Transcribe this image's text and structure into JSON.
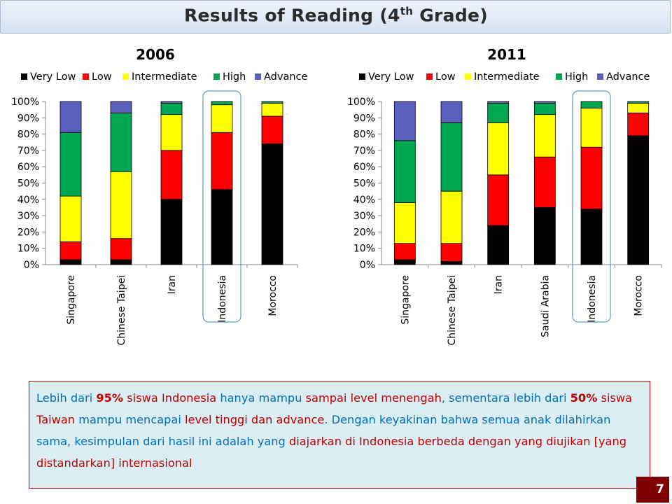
{
  "slide": {
    "title_main": "Results of Reading (4",
    "title_sup": "th",
    "title_end": " Grade)",
    "page_number": "7"
  },
  "chart_data": [
    {
      "type": "bar",
      "stacked": true,
      "title": "2006",
      "categories": [
        "Singapore",
        "Chinese Taipei",
        "Iran",
        "Indonesia",
        "Morocco"
      ],
      "series": [
        {
          "name": "Very Low",
          "color": "#000000",
          "values": [
            3,
            3,
            40,
            46,
            74
          ]
        },
        {
          "name": "Low",
          "color": "#ff0000",
          "values": [
            11,
            13,
            30,
            35,
            17
          ]
        },
        {
          "name": "Intermediate",
          "color": "#ffff00",
          "values": [
            28,
            41,
            22,
            17,
            8
          ]
        },
        {
          "name": "High",
          "color": "#00a650",
          "values": [
            39,
            36,
            7,
            2,
            1
          ]
        },
        {
          "name": "Advance",
          "color": "#5b5fbd",
          "values": [
            19,
            7,
            1,
            0,
            0
          ]
        }
      ],
      "yticks": [
        "0%",
        "10%",
        "20%",
        "30%",
        "40%",
        "50%",
        "60%",
        "70%",
        "80%",
        "90%",
        "100%"
      ],
      "ylim": [
        0,
        100
      ],
      "legend": "top",
      "highlight": "Indonesia"
    },
    {
      "type": "bar",
      "stacked": true,
      "title": "2011",
      "categories": [
        "Singapore",
        "Chinese Taipei",
        "Iran",
        "Saudi Arabia",
        "Indonesia",
        "Morocco"
      ],
      "series": [
        {
          "name": "Very Low",
          "color": "#000000",
          "values": [
            3,
            2,
            24,
            35,
            34,
            79
          ]
        },
        {
          "name": "Low",
          "color": "#ff0000",
          "values": [
            10,
            11,
            31,
            31,
            38,
            14
          ]
        },
        {
          "name": "Intermediate",
          "color": "#ffff00",
          "values": [
            25,
            32,
            32,
            26,
            24,
            6
          ]
        },
        {
          "name": "High",
          "color": "#00a650",
          "values": [
            38,
            42,
            12,
            7,
            4,
            1
          ]
        },
        {
          "name": "Advance",
          "color": "#5b5fbd",
          "values": [
            24,
            13,
            1,
            1,
            0,
            0
          ]
        }
      ],
      "yticks": [
        "0%",
        "10%",
        "20%",
        "30%",
        "40%",
        "50%",
        "60%",
        "70%",
        "80%",
        "90%",
        "100%"
      ],
      "ylim": [
        0,
        100
      ],
      "legend": "top",
      "highlight": "Indonesia"
    }
  ],
  "textbox": {
    "s1": "Lebih dari ",
    "s2": "95%",
    "s3": " siswa Indonesia",
    "s4": " hanya mampu ",
    "s5": "sampai level menengah",
    "s6": ", sementara lebih dari ",
    "s7": "50%",
    "s8": " siswa Taiwan",
    "s9": " mampu mencapai ",
    "s10": "level tinggi dan advance",
    "s11": ". Dengan keyakinan bahwa semua anak dilahirkan sama, kesimpulan dari hasil ini adalah yang ",
    "s12": "diajarkan di Indonesia berbeda dengan yang diujikan [yang distandarkan] internasional"
  }
}
